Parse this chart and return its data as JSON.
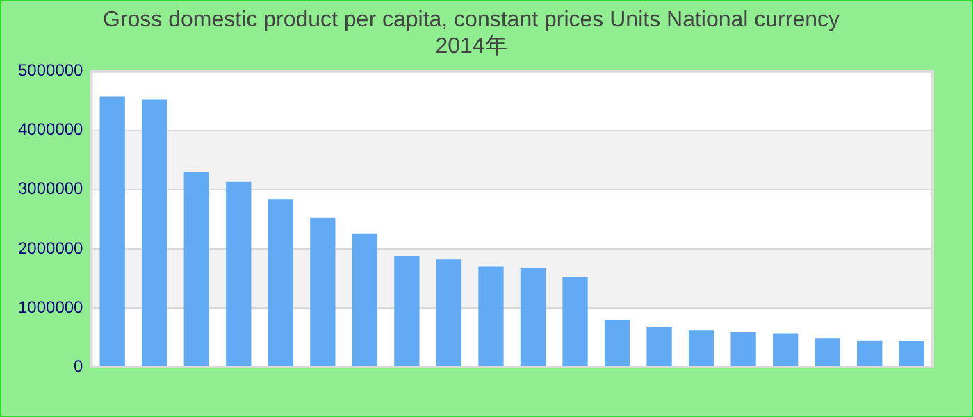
{
  "chart_data": {
    "type": "bar",
    "title": "Gross domestic product per capita, constant prices Units National currency",
    "subtitle": "2014年",
    "categories": [
      null,
      null,
      null,
      null,
      null,
      null,
      null,
      null,
      null,
      null,
      null,
      null,
      null,
      null,
      null,
      null,
      null,
      null,
      null,
      null
    ],
    "values": [
      4580000,
      4520000,
      3300000,
      3130000,
      2830000,
      2530000,
      2260000,
      1880000,
      1820000,
      1700000,
      1670000,
      1520000,
      800000,
      680000,
      620000,
      600000,
      570000,
      480000,
      450000,
      440000
    ],
    "color": "#63aaf5",
    "ylim": [
      0,
      5000000
    ],
    "yticks": [
      0,
      1000000,
      2000000,
      3000000,
      4000000,
      5000000
    ],
    "grid": true
  }
}
